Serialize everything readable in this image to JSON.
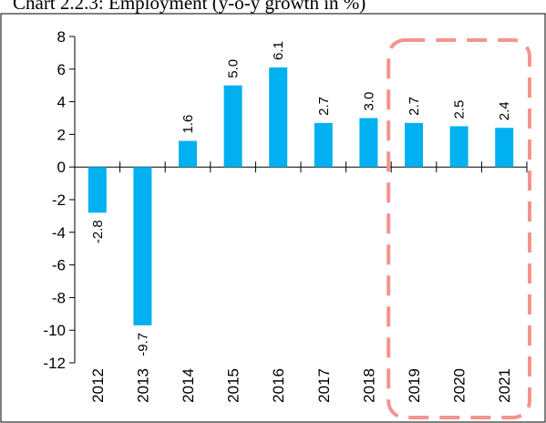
{
  "chart_data": {
    "type": "bar",
    "title": "Chart 2.2.3: Employment (y-o-y growth in %)",
    "categories": [
      "2012",
      "2013",
      "2014",
      "2015",
      "2016",
      "2017",
      "2018",
      "2019",
      "2020",
      "2021"
    ],
    "values": [
      -2.8,
      -9.7,
      1.6,
      5.0,
      6.1,
      2.7,
      3.0,
      2.7,
      2.5,
      2.4
    ],
    "data_labels": [
      "-2.8",
      "-9.7",
      "1.6",
      "5.0",
      "6.1",
      "2.7",
      "3.0",
      "2.7",
      "2.5",
      "2.4"
    ],
    "y_ticks": [
      "8",
      "6",
      "4",
      "2",
      "0",
      "-2",
      "-4",
      "-6",
      "-8",
      "-10",
      "-12"
    ],
    "ylim": [
      -12,
      8
    ],
    "grid": false,
    "highlight": {
      "style": "dashed rounded rectangle",
      "from_category": "2019",
      "to_category": "2021",
      "color": "#f4948f"
    },
    "colors": {
      "bar": "#00b0f0",
      "highlight": "#f4948f"
    }
  }
}
